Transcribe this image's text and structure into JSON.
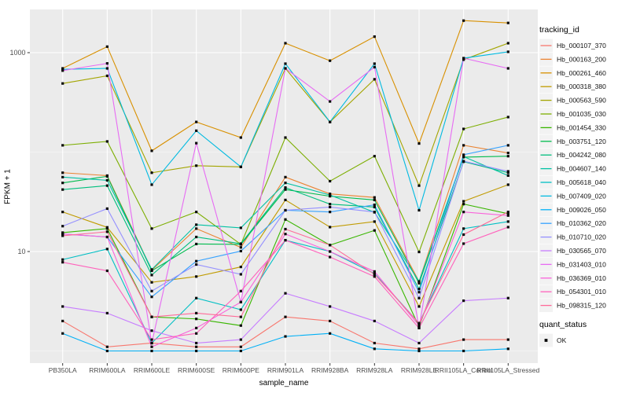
{
  "legend": {
    "tracking_title": "tracking_id",
    "quant_title": "quant_status",
    "quant_items": [
      {
        "label": "OK",
        "marker": "black-square"
      }
    ]
  },
  "chart_data": {
    "type": "line",
    "title": "",
    "xlabel": "sample_name",
    "ylabel": "FPKM + 1",
    "y_scale": "log10",
    "ylim": [
      0.9,
      2700
    ],
    "yticks": [
      {
        "value": 10,
        "label": "10"
      },
      {
        "value": 1000,
        "label": "1000"
      }
    ],
    "y_minor": [
      1,
      100
    ],
    "grid": "on",
    "legend_position": "right",
    "marker": "black-square",
    "layout": {
      "panel_bg": "#EBEBEB",
      "grid_color": "#FFFFFF",
      "key_bg": "#F2F2F2",
      "tick_text": "#4D4D4D",
      "point_color": "#0a0a0a"
    },
    "categories": [
      "PB350LA",
      "RRIM600LA",
      "RRIM600LE",
      "RRIM600SE",
      "RRIM600PE",
      "RRIM901LA",
      "RRIM928BA",
      "RRIM928LA",
      "RRIM928LE",
      "RRII105LA_Control",
      "RRII105LA_Stressed"
    ],
    "series": [
      {
        "name": "Hb_000107_370",
        "color": "#F8766D",
        "values": [
          2.0,
          1.1,
          1.2,
          1.1,
          1.1,
          2.2,
          2.0,
          1.2,
          1.05,
          1.3,
          1.3
        ]
      },
      {
        "name": "Hb_000163_200",
        "color": "#EA8331",
        "values": [
          62,
          58,
          6.5,
          17,
          11,
          56,
          38,
          35,
          5,
          117,
          98
        ]
      },
      {
        "name": "Hb_000261_460",
        "color": "#D89000",
        "values": [
          695,
          1150,
          103,
          201,
          140,
          1245,
          830,
          1450,
          122,
          2100,
          1990
        ]
      },
      {
        "name": "Hb_000318_380",
        "color": "#C09B00",
        "values": [
          25,
          17.5,
          4.9,
          5.6,
          7.0,
          33,
          17.6,
          20,
          2.8,
          32,
          47
        ]
      },
      {
        "name": "Hb_000563_590",
        "color": "#A3A500",
        "values": [
          490,
          585,
          62,
          73,
          71,
          695,
          201,
          540,
          46,
          850,
          1245
        ]
      },
      {
        "name": "Hb_001035_030",
        "color": "#7CAE00",
        "values": [
          117,
          128,
          17,
          25,
          11.8,
          140,
          51,
          91,
          9.9,
          171,
          225
        ]
      },
      {
        "name": "Hb_001454_330",
        "color": "#39B600",
        "values": [
          15.5,
          17,
          2.2,
          2.1,
          1.8,
          21,
          11.6,
          16.3,
          1.75,
          30,
          24
        ]
      },
      {
        "name": "Hb_003751_120",
        "color": "#00BB4E",
        "values": [
          49,
          57,
          6.4,
          11.9,
          11.8,
          42,
          36,
          33,
          4.8,
          89,
          91
        ]
      },
      {
        "name": "Hb_004242_080",
        "color": "#00BF7D",
        "values": [
          42,
          46,
          5.8,
          14,
          12,
          44,
          30,
          28,
          4.2,
          80,
          62
        ]
      },
      {
        "name": "Hb_004607_140",
        "color": "#00C1A3",
        "values": [
          56,
          52,
          6.6,
          18.6,
          17.3,
          49,
          37,
          24.8,
          5.0,
          90,
          58
        ]
      },
      {
        "name": "Hb_005618_040",
        "color": "#00BFC4",
        "values": [
          8.3,
          10.6,
          1.2,
          3.4,
          2.6,
          13,
          10,
          6,
          1.9,
          17,
          20
        ]
      },
      {
        "name": "Hb_007409_020",
        "color": "#00BAE0",
        "values": [
          680,
          695,
          47,
          164,
          71,
          775,
          201,
          775,
          26,
          880,
          1020
        ]
      },
      {
        "name": "Hb_009026_050",
        "color": "#00B0F6",
        "values": [
          1.5,
          1.0,
          1.0,
          1.0,
          1.0,
          1.4,
          1.5,
          1.05,
          1.0,
          1.0,
          1.05
        ]
      },
      {
        "name": "Hb_010362_020",
        "color": "#35A2FF",
        "values": [
          15,
          14,
          3.5,
          8,
          10.1,
          26,
          25,
          29.5,
          3.9,
          94,
          117
        ]
      },
      {
        "name": "Hb_010710_020",
        "color": "#9590FF",
        "values": [
          18,
          27,
          4.0,
          7.4,
          5.9,
          26,
          28,
          25,
          3.4,
          81,
          64
        ]
      },
      {
        "name": "Hb_030565_070",
        "color": "#C77CFF",
        "values": [
          2.8,
          2.4,
          1.6,
          1.2,
          1.3,
          3.8,
          2.8,
          2.0,
          1.2,
          3.2,
          3.4
        ]
      },
      {
        "name": "Hb_031403_010",
        "color": "#E76BF3",
        "values": [
          660,
          780,
          1.2,
          123,
          3.1,
          695,
          323,
          715,
          1.7,
          880,
          695
        ]
      },
      {
        "name": "Hb_036369_010",
        "color": "#FA62DB",
        "values": [
          15,
          14,
          1.1,
          1.7,
          3.1,
          15,
          10,
          6.3,
          1.8,
          25,
          23
        ]
      },
      {
        "name": "Hb_054301_010",
        "color": "#FF62BC",
        "values": [
          7.8,
          6.4,
          1.3,
          1.5,
          4.0,
          13,
          8.8,
          5.6,
          1.7,
          12,
          17.6
        ]
      },
      {
        "name": "Hb_098315_120",
        "color": "#FF6A98",
        "values": [
          14.4,
          15.8,
          2.2,
          2.4,
          2.2,
          16.8,
          11.6,
          5.9,
          1.9,
          14.8,
          25
        ]
      }
    ]
  }
}
